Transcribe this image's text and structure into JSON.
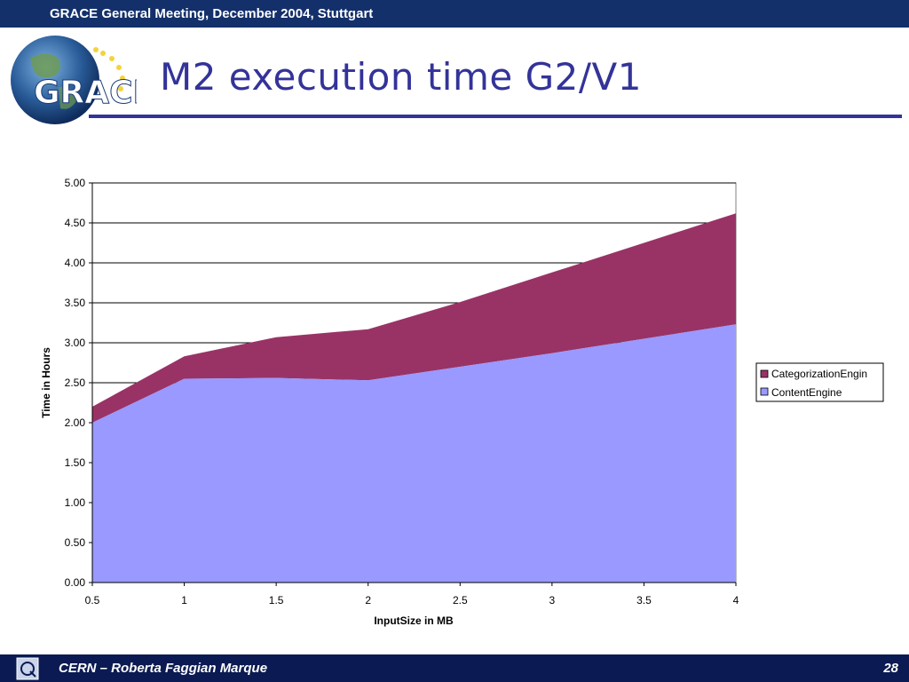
{
  "header": {
    "meeting": "GRACE General Meeting, December 2004, Stuttgart"
  },
  "logo": {
    "text": "GRACE"
  },
  "slide": {
    "title": "M2 execution time G2/V1"
  },
  "footer": {
    "author": "CERN – Roberta Faggian Marque",
    "page": "28"
  },
  "colors": {
    "content_engine": "#9999ff",
    "categorization_engine": "#993366",
    "title": "#333399",
    "bar": "#14306b"
  },
  "chart_data": {
    "type": "area",
    "stacked": true,
    "x": [
      0.5,
      1,
      1.5,
      2,
      2.5,
      3,
      3.5,
      4
    ],
    "x_tick_labels": [
      "0.5",
      "1",
      "1.5",
      "2",
      "2.5",
      "3",
      "3.5",
      "4"
    ],
    "y_tick_labels": [
      "0.00",
      "0.50",
      "1.00",
      "1.50",
      "2.00",
      "2.50",
      "3.00",
      "3.50",
      "4.00",
      "4.50",
      "5.00"
    ],
    "ylim": [
      0,
      5
    ],
    "xlabel": "InputSize in MB",
    "ylabel": "Time in Hours",
    "grid": true,
    "legend": "right",
    "series": [
      {
        "name": "ContentEngine",
        "values": [
          2.0,
          2.55,
          2.56,
          2.53,
          2.7,
          2.87,
          3.05,
          3.23
        ]
      },
      {
        "name": "CategorizationEngin",
        "values": [
          0.2,
          0.28,
          0.51,
          0.64,
          0.81,
          1.01,
          1.2,
          1.39
        ]
      }
    ]
  }
}
